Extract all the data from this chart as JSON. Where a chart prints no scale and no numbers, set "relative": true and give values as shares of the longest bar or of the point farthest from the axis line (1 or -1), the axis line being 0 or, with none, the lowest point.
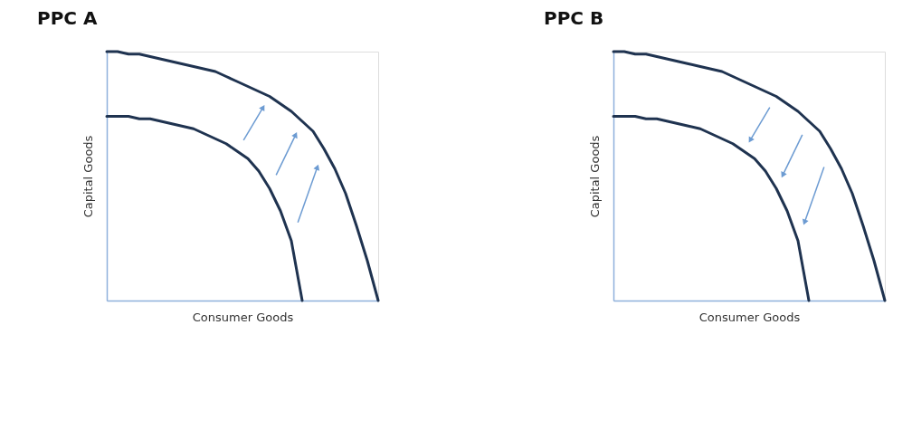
{
  "chart_data": [
    {
      "type": "line",
      "title": "PPC A",
      "xlabel": "Consumer Goods",
      "ylabel": "Capital Goods",
      "relative": true,
      "grid": false,
      "legend": false,
      "marker": "none",
      "line_style": "solid",
      "categories": [
        null,
        null,
        null,
        null,
        null,
        null,
        null,
        null,
        null,
        null,
        null,
        null,
        null,
        null,
        null,
        null,
        null,
        null,
        null,
        null,
        null,
        null,
        null,
        null,
        null,
        null
      ],
      "series": [
        {
          "color": "#1f3350",
          "values": [
            0.74,
            0.74,
            0.74,
            0.73,
            0.73,
            0.72,
            0.71,
            0.7,
            0.69,
            0.67,
            0.65,
            0.63,
            0.6,
            0.57,
            0.52,
            0.45,
            0.36,
            0.24,
            0,
            null,
            null,
            null,
            null,
            null,
            null,
            null
          ]
        },
        {
          "color": "#1f3350",
          "values": [
            1.0,
            1.0,
            0.99,
            0.99,
            0.98,
            0.97,
            0.96,
            0.95,
            0.94,
            0.93,
            0.92,
            0.9,
            0.88,
            0.86,
            0.84,
            0.82,
            0.79,
            0.76,
            0.72,
            0.68,
            0.61,
            0.53,
            0.43,
            0.3,
            0.16,
            0
          ]
        }
      ]
    },
    {
      "type": "line",
      "title": "PPC B",
      "xlabel": "Consumer Goods",
      "ylabel": "Capital Goods",
      "relative": true,
      "grid": false,
      "legend": false,
      "marker": "none",
      "line_style": "solid",
      "categories": [
        null,
        null,
        null,
        null,
        null,
        null,
        null,
        null,
        null,
        null,
        null,
        null,
        null,
        null,
        null,
        null,
        null,
        null,
        null,
        null,
        null,
        null,
        null,
        null,
        null,
        null
      ],
      "series": [
        {
          "color": "#1f3350",
          "values": [
            1.0,
            1.0,
            0.99,
            0.99,
            0.98,
            0.97,
            0.96,
            0.95,
            0.94,
            0.93,
            0.92,
            0.9,
            0.88,
            0.86,
            0.84,
            0.82,
            0.79,
            0.76,
            0.72,
            0.68,
            0.61,
            0.53,
            0.43,
            0.3,
            0.16,
            0
          ]
        },
        {
          "color": "#1f3350",
          "values": [
            0.74,
            0.74,
            0.74,
            0.73,
            0.73,
            0.72,
            0.71,
            0.7,
            0.69,
            0.67,
            0.65,
            0.63,
            0.6,
            0.57,
            0.52,
            0.45,
            0.36,
            0.24,
            0,
            null,
            null,
            null,
            null,
            null,
            null,
            null
          ]
        }
      ]
    }
  ]
}
